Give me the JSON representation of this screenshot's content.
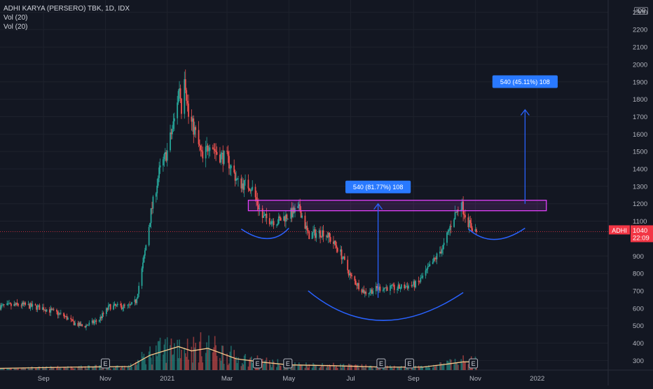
{
  "header": {
    "symbol_line": "ADHI KARYA (PERSERO) TBK, 1D, IDX",
    "indicators": [
      "Vol (20)",
      "Vol (20)"
    ],
    "currency": "IDR"
  },
  "price_tag": {
    "ticker": "ADHI",
    "price": "1040",
    "countdown": "22:09",
    "color": "#f23645"
  },
  "earnings_marker": "E",
  "colors": {
    "up": "#26a69a",
    "down": "#ef5350",
    "background": "#131722",
    "grid": "#1e222d",
    "magenta": "#e040fb",
    "blue": "#2962ff",
    "volume_ma": "#f7c78a",
    "label_blue": "#2979ff"
  },
  "annotations": {
    "measure_left": "540 (81.77%) 108",
    "measure_right": "540 (45.11%) 108",
    "resistance_zone": [
      1160,
      1220
    ]
  },
  "chart_data": {
    "type": "candlestick",
    "y_axis": {
      "ticks": [
        300,
        400,
        500,
        600,
        700,
        800,
        900,
        1000,
        1100,
        1200,
        1300,
        1400,
        1500,
        1600,
        1700,
        1800,
        1900,
        2000,
        2100,
        2200,
        2300
      ],
      "tick_labels": [
        "300",
        "400",
        "500",
        "600",
        "700",
        "800",
        "900",
        "1000",
        "1100",
        "1200",
        "1300",
        "1400",
        "1500",
        "1600",
        "1700",
        "1800",
        "1900",
        "2000",
        "2100",
        "2200",
        "2300"
      ],
      "range": [
        245,
        2370
      ]
    },
    "x_axis": {
      "tick_labels": [
        "Sep",
        "Nov",
        "2021",
        "Mar",
        "May",
        "Jul",
        "Sep",
        "Nov",
        "2022"
      ],
      "range": [
        "2020-07-20",
        "2022-03-12"
      ]
    },
    "price_path": [
      [
        "2020-07-20",
        610
      ],
      [
        "2020-08-10",
        620
      ],
      [
        "2020-09-01",
        600
      ],
      [
        "2020-09-20",
        560
      ],
      [
        "2020-10-01",
        515
      ],
      [
        "2020-10-10",
        495
      ],
      [
        "2020-10-25",
        530
      ],
      [
        "2020-11-05",
        610
      ],
      [
        "2020-11-25",
        610
      ],
      [
        "2020-12-01",
        640
      ],
      [
        "2020-12-08",
        850
      ],
      [
        "2020-12-16",
        1150
      ],
      [
        "2020-12-24",
        1380
      ],
      [
        "2021-01-01",
        1500
      ],
      [
        "2021-01-08",
        1680
      ],
      [
        "2021-01-13",
        1880
      ],
      [
        "2021-01-15",
        1750
      ],
      [
        "2021-01-18",
        1960
      ],
      [
        "2021-01-22",
        1700
      ],
      [
        "2021-01-28",
        1620
      ],
      [
        "2021-02-05",
        1450
      ],
      [
        "2021-02-12",
        1560
      ],
      [
        "2021-02-20",
        1480
      ],
      [
        "2021-03-01",
        1460
      ],
      [
        "2021-03-12",
        1320
      ],
      [
        "2021-03-25",
        1300
      ],
      [
        "2021-04-05",
        1120
      ],
      [
        "2021-04-20",
        1100
      ],
      [
        "2021-05-05",
        1150
      ],
      [
        "2021-05-12",
        1170
      ],
      [
        "2021-05-20",
        1020
      ],
      [
        "2021-06-05",
        1040
      ],
      [
        "2021-06-20",
        930
      ],
      [
        "2021-07-01",
        780
      ],
      [
        "2021-07-15",
        690
      ],
      [
        "2021-08-01",
        720
      ],
      [
        "2021-08-15",
        715
      ],
      [
        "2021-09-05",
        740
      ],
      [
        "2021-09-15",
        820
      ],
      [
        "2021-10-01",
        960
      ],
      [
        "2021-10-10",
        1120
      ],
      [
        "2021-10-18",
        1200
      ],
      [
        "2021-10-26",
        1080
      ],
      [
        "2021-11-02",
        1040
      ]
    ],
    "volume_ma_path": [
      [
        "2020-07-20",
        255
      ],
      [
        "2020-10-01",
        262
      ],
      [
        "2020-11-25",
        265
      ],
      [
        "2020-12-15",
        330
      ],
      [
        "2021-01-01",
        360
      ],
      [
        "2021-01-12",
        380
      ],
      [
        "2021-01-25",
        355
      ],
      [
        "2021-02-10",
        370
      ],
      [
        "2021-03-10",
        310
      ],
      [
        "2021-04-05",
        290
      ],
      [
        "2021-05-01",
        275
      ],
      [
        "2021-06-15",
        270
      ],
      [
        "2021-08-01",
        262
      ],
      [
        "2021-09-10",
        262
      ],
      [
        "2021-10-05",
        280
      ],
      [
        "2021-10-20",
        292
      ],
      [
        "2021-11-02",
        292
      ]
    ],
    "earnings_dates": [
      "2020-11-01",
      "2021-03-31",
      "2021-04-30",
      "2021-07-31",
      "2021-08-28",
      "2021-10-30"
    ],
    "drawings": {
      "resistance_zone": {
        "from": "2021-03-22",
        "to": "2022-01-10",
        "low": 1160,
        "high": 1220
      },
      "measure_left": {
        "date": "2021-07-28",
        "from": 660,
        "to": 1200
      },
      "measure_right": {
        "date": "2021-12-20",
        "from": 1200,
        "to": 1740
      },
      "arc_left": [
        [
          "2021-03-15",
          1055
        ],
        [
          "2021-04-10",
          1000
        ],
        [
          "2021-05-01",
          1060
        ]
      ],
      "arc_cup": [
        [
          "2021-05-20",
          700
        ],
        [
          "2021-08-01",
          530
        ],
        [
          "2021-10-20",
          690
        ]
      ],
      "arc_right": [
        [
          "2021-10-25",
          1055
        ],
        [
          "2021-11-20",
          995
        ],
        [
          "2021-12-20",
          1060
        ]
      ]
    }
  }
}
